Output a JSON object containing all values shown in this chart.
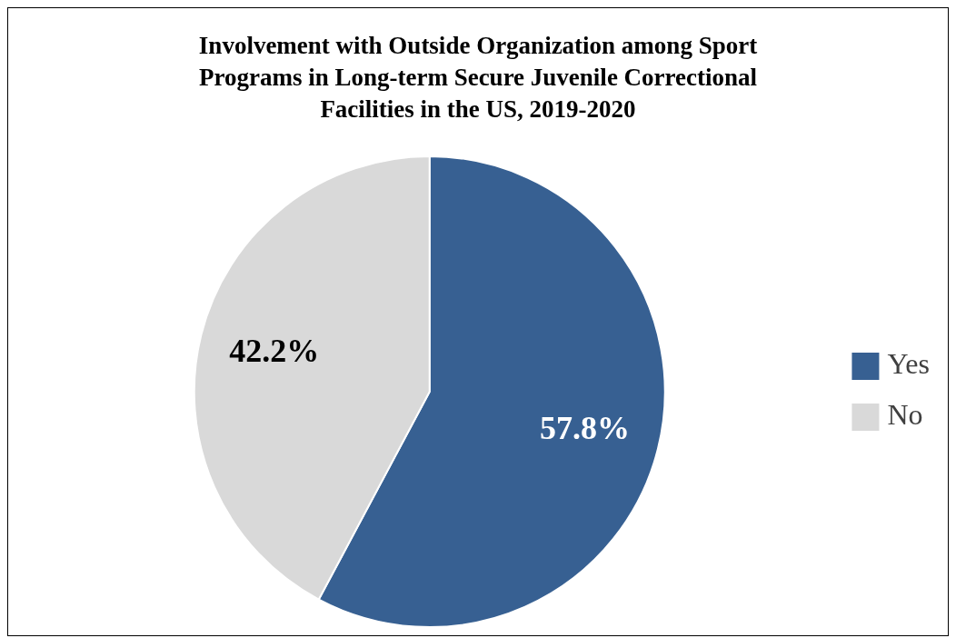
{
  "chart_data": {
    "type": "pie",
    "title": "Involvement with Outside Organization among Sport Programs in Long-term Secure Juvenile Correctional Facilities in the US, 2019-2020",
    "categories": [
      "Yes",
      "No"
    ],
    "values": [
      57.8,
      42.2
    ],
    "colors": [
      "#376092",
      "#d9d9d9"
    ],
    "value_labels": [
      "57.8%",
      "42.2%"
    ],
    "legend": "right"
  }
}
